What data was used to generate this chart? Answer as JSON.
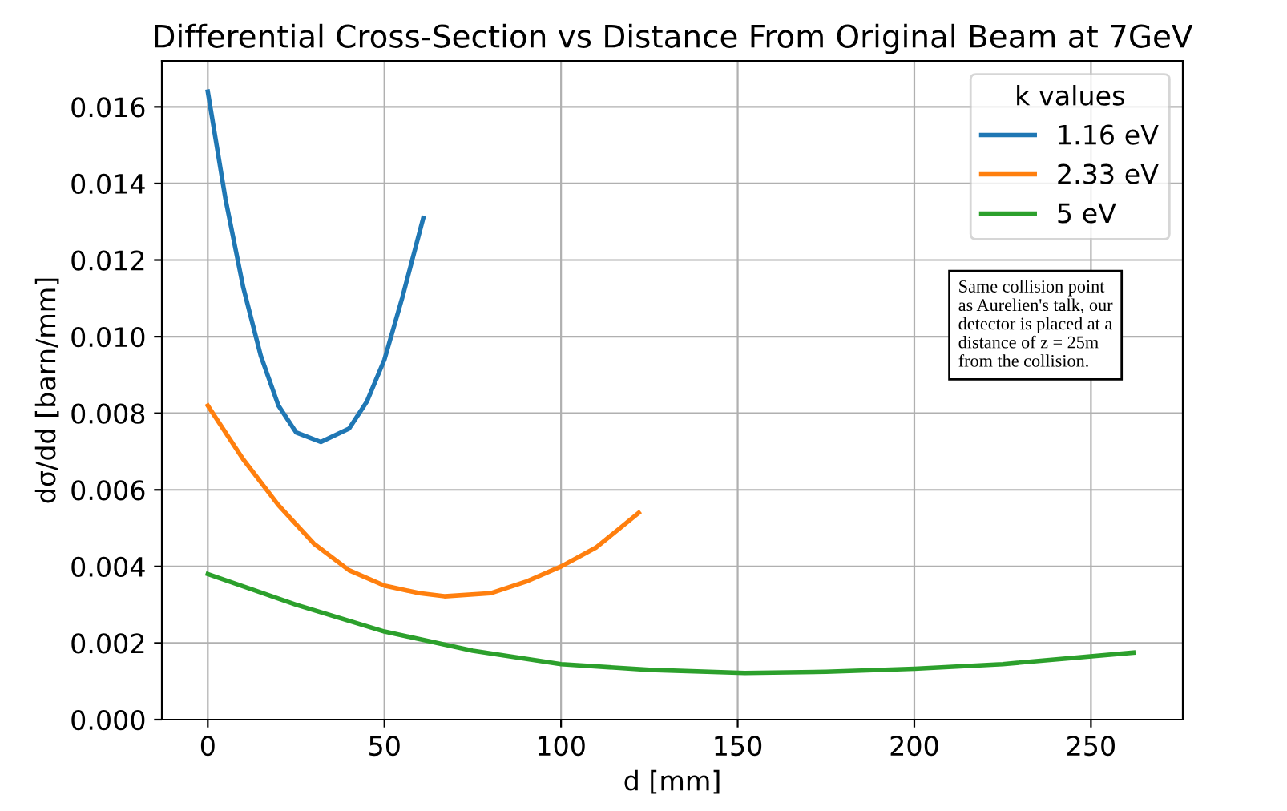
{
  "chart_data": {
    "type": "line",
    "title": "Differential Cross-Section vs Distance From Original Beam at 7GeV",
    "xlabel": "d [mm]",
    "ylabel": "dσ/dd [barn/mm]",
    "legend_title": "k values",
    "legend": "top right",
    "grid": true,
    "xlim": [
      -13,
      276
    ],
    "xticks": [
      0,
      50,
      100,
      150,
      200,
      250
    ],
    "ylim": [
      0,
      0.0172
    ],
    "yticks": [
      {
        "value": 0,
        "label": "0.000"
      },
      {
        "value": 0.002,
        "label": "0.002"
      },
      {
        "value": 0.004,
        "label": "0.004"
      },
      {
        "value": 0.006,
        "label": "0.006"
      },
      {
        "value": 0.008,
        "label": "0.008"
      },
      {
        "value": 0.01,
        "label": "0.010"
      },
      {
        "value": 0.012,
        "label": "0.012"
      },
      {
        "value": 0.014,
        "label": "0.014"
      },
      {
        "value": 0.016,
        "label": "0.016"
      }
    ],
    "annotations": [
      "Same collision point\nas Aurelien's talk, our\ndetector is placed at a\ndistance of z = 25m\nfrom the collision."
    ],
    "series": [
      {
        "name": "1.16 eV",
        "color": "#1f77b4",
        "x": [
          0,
          5,
          10,
          15,
          20,
          25,
          32,
          40,
          45,
          50,
          55,
          61
        ],
        "values": [
          0.0164,
          0.0136,
          0.0113,
          0.0095,
          0.0082,
          0.0075,
          0.00725,
          0.0076,
          0.0083,
          0.0094,
          0.011,
          0.0131
        ]
      },
      {
        "name": "2.33 eV",
        "color": "#ff7f0e",
        "x": [
          0,
          10,
          20,
          30,
          40,
          50,
          60,
          67,
          80,
          90,
          100,
          110,
          122
        ],
        "values": [
          0.0082,
          0.0068,
          0.0056,
          0.0046,
          0.0039,
          0.0035,
          0.0033,
          0.00322,
          0.0033,
          0.0036,
          0.004,
          0.0045,
          0.0054
        ]
      },
      {
        "name": "5 eV",
        "color": "#2ca02c",
        "x": [
          0,
          25,
          50,
          75,
          100,
          125,
          152,
          175,
          200,
          225,
          262
        ],
        "values": [
          0.0038,
          0.003,
          0.0023,
          0.0018,
          0.00145,
          0.0013,
          0.00122,
          0.00125,
          0.00133,
          0.00145,
          0.00175
        ]
      }
    ]
  }
}
